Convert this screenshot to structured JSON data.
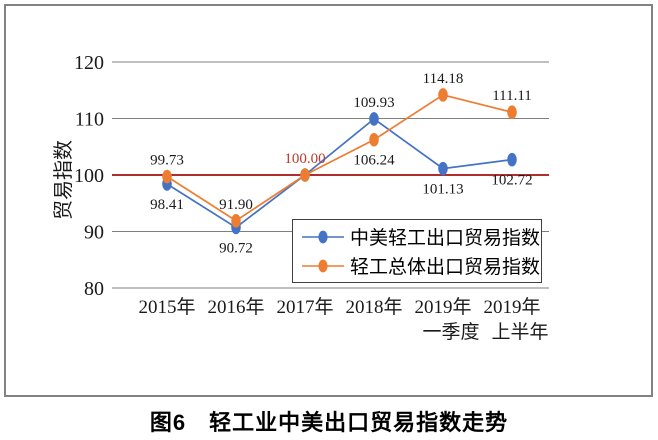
{
  "figure": {
    "caption": "图6　轻工业中美出口贸易指数走势"
  },
  "chart_data": {
    "type": "line",
    "title": "",
    "xlabel": "",
    "ylabel": "贸易指数",
    "ylim": [
      80,
      120
    ],
    "yticks": [
      80,
      90,
      100,
      110,
      120
    ],
    "grid": "horizontal-only",
    "gridline_color": "#7f7f7f",
    "legend_position": "inside-lower-right",
    "data_label_color": "#1a1a1a",
    "categories": [
      [
        "2015年"
      ],
      [
        "2016年"
      ],
      [
        "2017年"
      ],
      [
        "2018年"
      ],
      [
        "2019年",
        "一季度"
      ],
      [
        "2019年",
        "上半年"
      ]
    ],
    "series": [
      {
        "name": "中美轻工出口贸易指数",
        "color": "#4472C4",
        "values": [
          98.41,
          90.72,
          100.0,
          109.93,
          101.13,
          102.72
        ],
        "labels": [
          "98.41",
          "90.72",
          "",
          "109.93",
          "101.13",
          "102.72"
        ],
        "label_side": [
          "below",
          "below",
          "none",
          "above",
          "below",
          "below"
        ],
        "label_colors": {}
      },
      {
        "name": "轻工总体出口贸易指数",
        "color": "#ED7D31",
        "values": [
          99.73,
          91.9,
          100.0,
          106.24,
          114.18,
          111.11
        ],
        "labels": [
          "99.73",
          "91.90",
          "100.00",
          "106.24",
          "114.18",
          "111.11"
        ],
        "label_side": [
          "above",
          "above",
          "above",
          "below",
          "above",
          "above"
        ],
        "label_colors": {
          "2": "#C0392B"
        }
      }
    ],
    "reference_line": {
      "value": 100,
      "color": "#B02E2E"
    }
  }
}
